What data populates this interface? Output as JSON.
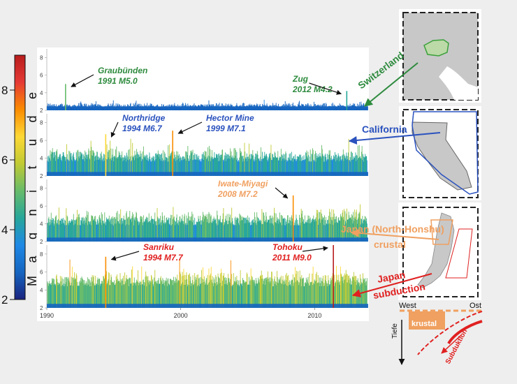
{
  "colorbar": {
    "label": "Magnitude",
    "ticks": [
      "2",
      "4",
      "6",
      "8"
    ],
    "range": [
      2,
      9
    ],
    "colors": [
      "#1a237e",
      "#1565c0",
      "#1e88e5",
      "#26a69a",
      "#66bb6a",
      "#c0ca33",
      "#fdd835",
      "#fb8c00",
      "#e53935",
      "#b71c1c"
    ]
  },
  "chart_data": {
    "type": "bar",
    "x_range": [
      1990,
      2014
    ],
    "x_ticks": [
      "1990",
      "2000",
      "2010"
    ],
    "y_ticks": [
      "2",
      "4",
      "6",
      "8"
    ],
    "ylim": [
      2,
      9
    ],
    "panels": [
      {
        "region": "Switzerland",
        "region_color": "#2e8b3e",
        "base_level": 2.3,
        "noise_amp": 0.6,
        "events": [
          {
            "year": 1991,
            "magnitude": 5.0,
            "name": "Graubünden",
            "label": "1991 M5.0"
          },
          {
            "year": 2012,
            "magnitude": 4.2,
            "name": "Zug",
            "label": "2012 M4.2"
          }
        ]
      },
      {
        "region": "California",
        "region_color": "#2a52be",
        "base_level": 3.6,
        "noise_amp": 1.6,
        "events": [
          {
            "year": 1994,
            "magnitude": 6.7,
            "name": "Northridge",
            "label": "1994 M6.7"
          },
          {
            "year": 1999,
            "magnitude": 7.1,
            "name": "Hector Mine",
            "label": "1999 M7.1"
          }
        ]
      },
      {
        "region": "Japan (North-Honshu) crustal",
        "region_color": "#f0a060",
        "base_level": 3.8,
        "noise_amp": 1.8,
        "events": [
          {
            "year": 2008,
            "magnitude": 7.2,
            "name": "Iwate-Miyagi",
            "label": "2008 M7.2"
          }
        ]
      },
      {
        "region": "Japan subduction",
        "region_color": "#e02020",
        "base_level": 4.4,
        "noise_amp": 1.8,
        "events": [
          {
            "year": 1994,
            "magnitude": 7.7,
            "name": "Sanriku",
            "label": "1994 M7.7"
          },
          {
            "year": 2011,
            "magnitude": 9.0,
            "name": "Tohoku",
            "label": "2011 M9.0"
          }
        ]
      }
    ]
  },
  "maps": {
    "region_labels": [
      "Switzerland",
      "California",
      "Japan (North-Honshu)",
      "crustal",
      "Japan",
      "subduction"
    ]
  },
  "cross_section": {
    "west": "West",
    "east": "Ost",
    "depth": "Tiefe",
    "crustal": "krustal",
    "subduction": "Subduktion"
  },
  "labels": {
    "switzerland": "Switzerland",
    "california": "California",
    "japan_crustal_1": "Japan (North-Honshu)",
    "japan_crustal_2": "crustal",
    "japan_sub_1": "Japan",
    "japan_sub_2": "subduction"
  }
}
